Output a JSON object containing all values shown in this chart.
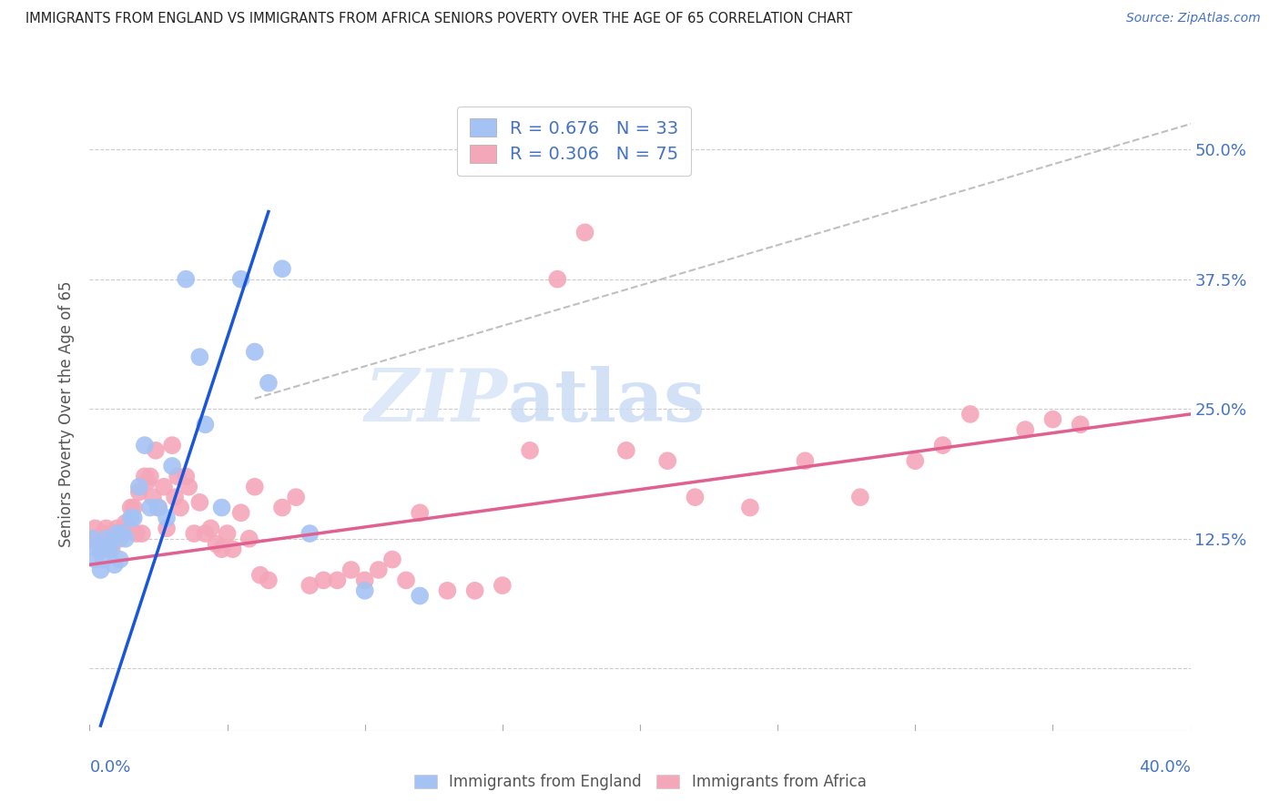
{
  "title": "IMMIGRANTS FROM ENGLAND VS IMMIGRANTS FROM AFRICA SENIORS POVERTY OVER THE AGE OF 65 CORRELATION CHART",
  "source": "Source: ZipAtlas.com",
  "ylabel": "Seniors Poverty Over the Age of 65",
  "yticks": [
    0.0,
    0.125,
    0.25,
    0.375,
    0.5
  ],
  "ytick_labels": [
    "",
    "12.5%",
    "25.0%",
    "37.5%",
    "50.0%"
  ],
  "legend_england": "R = 0.676   N = 33",
  "legend_africa": "R = 0.306   N = 75",
  "legend_label_england": "Immigrants from England",
  "legend_label_africa": "Immigrants from Africa",
  "england_color": "#a4c2f4",
  "africa_color": "#f4a7b9",
  "regression_england_color": "#1a56db",
  "regression_africa_color": "#e06090",
  "diagonal_color": "#b0b0b0",
  "background_color": "#ffffff",
  "text_color": "#4472c4",
  "title_color": "#222222",
  "england_x": [
    0.001,
    0.002,
    0.003,
    0.004,
    0.005,
    0.005,
    0.006,
    0.007,
    0.008,
    0.009,
    0.01,
    0.011,
    0.012,
    0.013,
    0.015,
    0.016,
    0.018,
    0.02,
    0.022,
    0.025,
    0.028,
    0.03,
    0.035,
    0.04,
    0.042,
    0.048,
    0.055,
    0.06,
    0.065,
    0.07,
    0.08,
    0.1,
    0.12
  ],
  "england_y": [
    0.125,
    0.105,
    0.115,
    0.095,
    0.115,
    0.105,
    0.125,
    0.115,
    0.12,
    0.1,
    0.13,
    0.105,
    0.13,
    0.125,
    0.145,
    0.145,
    0.175,
    0.215,
    0.155,
    0.155,
    0.145,
    0.195,
    0.375,
    0.3,
    0.235,
    0.155,
    0.375,
    0.305,
    0.275,
    0.385,
    0.13,
    0.075,
    0.07
  ],
  "africa_x": [
    0.001,
    0.002,
    0.003,
    0.004,
    0.005,
    0.006,
    0.007,
    0.008,
    0.009,
    0.01,
    0.011,
    0.012,
    0.013,
    0.014,
    0.015,
    0.016,
    0.017,
    0.018,
    0.019,
    0.02,
    0.021,
    0.022,
    0.023,
    0.024,
    0.025,
    0.027,
    0.028,
    0.03,
    0.031,
    0.032,
    0.033,
    0.035,
    0.036,
    0.038,
    0.04,
    0.042,
    0.044,
    0.046,
    0.048,
    0.05,
    0.052,
    0.055,
    0.058,
    0.06,
    0.062,
    0.065,
    0.07,
    0.075,
    0.08,
    0.085,
    0.09,
    0.095,
    0.1,
    0.105,
    0.11,
    0.115,
    0.12,
    0.13,
    0.14,
    0.15,
    0.16,
    0.17,
    0.18,
    0.195,
    0.21,
    0.22,
    0.24,
    0.26,
    0.28,
    0.3,
    0.31,
    0.32,
    0.34,
    0.35,
    0.36
  ],
  "africa_y": [
    0.125,
    0.135,
    0.12,
    0.115,
    0.13,
    0.135,
    0.125,
    0.115,
    0.13,
    0.135,
    0.125,
    0.13,
    0.14,
    0.135,
    0.155,
    0.155,
    0.13,
    0.17,
    0.13,
    0.185,
    0.18,
    0.185,
    0.165,
    0.21,
    0.155,
    0.175,
    0.135,
    0.215,
    0.165,
    0.185,
    0.155,
    0.185,
    0.175,
    0.13,
    0.16,
    0.13,
    0.135,
    0.12,
    0.115,
    0.13,
    0.115,
    0.15,
    0.125,
    0.175,
    0.09,
    0.085,
    0.155,
    0.165,
    0.08,
    0.085,
    0.085,
    0.095,
    0.085,
    0.095,
    0.105,
    0.085,
    0.15,
    0.075,
    0.075,
    0.08,
    0.21,
    0.375,
    0.42,
    0.21,
    0.2,
    0.165,
    0.155,
    0.2,
    0.165,
    0.2,
    0.215,
    0.245,
    0.23,
    0.24,
    0.235
  ],
  "xlim": [
    0.0,
    0.4
  ],
  "ylim": [
    -0.06,
    0.55
  ],
  "xmin": 0.0,
  "xmax": 0.4
}
